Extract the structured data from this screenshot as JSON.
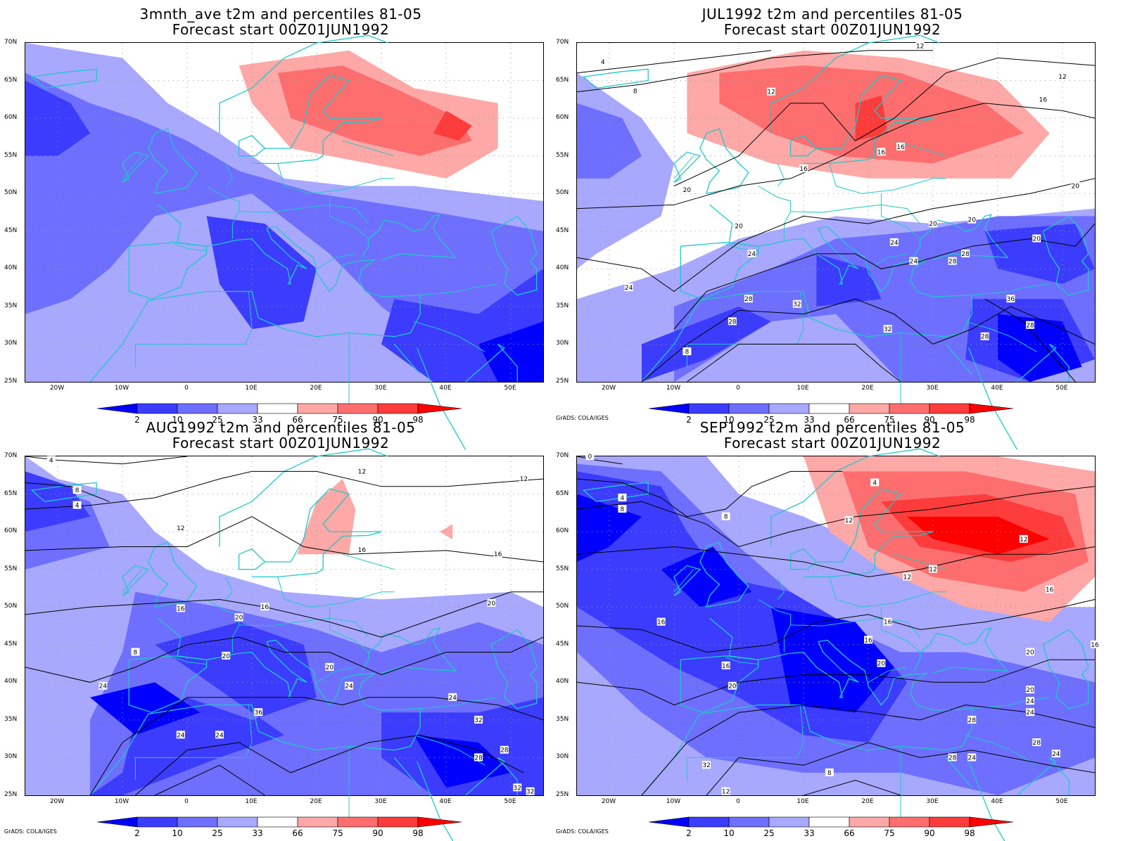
{
  "panels": [
    {
      "title": "3mnth_ave t2m and percentiles 81-05",
      "subtitle": "Forecast start 00Z01JUN1992",
      "credit": ""
    },
    {
      "title": "JUL1992 t2m and percentiles 81-05",
      "subtitle": "Forecast start 00Z01JUN1992",
      "credit": "GrADS: COLA/IGES"
    },
    {
      "title": "AUG1992 t2m and percentiles 81-05",
      "subtitle": "Forecast start 00Z01JUN1992",
      "credit": "GrADS: COLA/IGES"
    },
    {
      "title": "SEP1992 t2m and percentiles 81-05",
      "subtitle": "Forecast start 00Z01JUN1992",
      "credit": "GrADS: COLA/IGES"
    }
  ],
  "lat_labels": [
    "70N",
    "65N",
    "60N",
    "55N",
    "50N",
    "45N",
    "40N",
    "35N",
    "30N",
    "25N"
  ],
  "lon_labels": [
    "20W",
    "10W",
    "0",
    "10E",
    "20E",
    "30E",
    "40E",
    "50E"
  ],
  "colorbar": {
    "labels": [
      "2",
      "10",
      "25",
      "33",
      "66",
      "75",
      "90",
      "98"
    ],
    "colors": [
      "#0000ff",
      "#3c3cff",
      "#6e6eff",
      "#a8a8ff",
      "#ffffff",
      "#ffa8a8",
      "#ff6e6e",
      "#ff3c3c",
      "#ff0000"
    ]
  },
  "contour_labels": {
    "jul": [
      "4",
      "8",
      "12",
      "12",
      "12",
      "16",
      "16",
      "16",
      "16",
      "20",
      "20",
      "20",
      "20",
      "20",
      "20",
      "24",
      "24",
      "24",
      "24",
      "28",
      "28",
      "28",
      "32",
      "32",
      "36",
      "28",
      "28",
      "28",
      "8"
    ],
    "aug": [
      "4",
      "8",
      "4",
      "12",
      "12",
      "12",
      "16",
      "16",
      "16",
      "16",
      "20",
      "20",
      "20",
      "20",
      "24",
      "24",
      "24",
      "24",
      "28",
      "32",
      "36",
      "24",
      "28",
      "32",
      "32",
      "8"
    ],
    "sep": [
      "0",
      "4",
      "8",
      "4",
      "8",
      "12",
      "12",
      "12",
      "12",
      "16",
      "16",
      "16",
      "16",
      "16",
      "16",
      "20",
      "20",
      "20",
      "20",
      "24",
      "24",
      "24",
      "28",
      "28",
      "28",
      "32",
      "24",
      "8",
      "12"
    ]
  },
  "colors": {
    "coastline": "#20c8c8",
    "contour": "#000000",
    "grid": "#999999"
  }
}
